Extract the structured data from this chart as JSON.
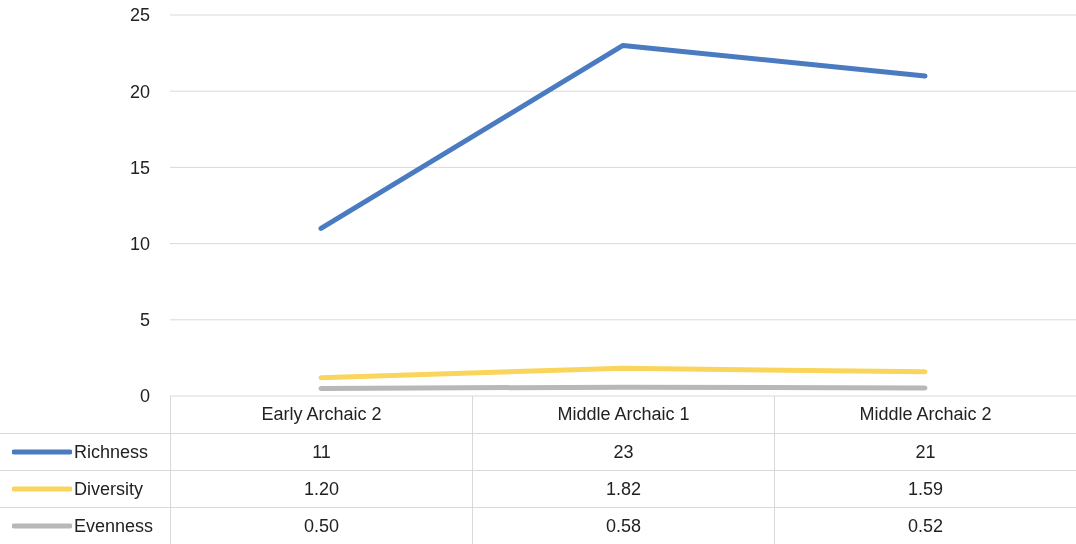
{
  "chart_data": {
    "type": "line",
    "categories": [
      "Early Archaic 2",
      "Middle Archaic 1",
      "Middle Archaic 2"
    ],
    "series": [
      {
        "name": "Richness",
        "color": "#4a7bc0",
        "values": [
          11,
          23,
          21
        ],
        "value_labels": [
          "11",
          "23",
          "21"
        ]
      },
      {
        "name": "Diversity",
        "color": "#fad55c",
        "values": [
          1.2,
          1.82,
          1.59
        ],
        "value_labels": [
          "1.20",
          "1.82",
          "1.59"
        ]
      },
      {
        "name": "Evenness",
        "color": "#b8b8b8",
        "values": [
          0.5,
          0.58,
          0.52
        ],
        "value_labels": [
          "0.50",
          "0.58",
          "0.52"
        ]
      }
    ],
    "ylim": [
      0,
      25
    ],
    "yticks": [
      0,
      5,
      10,
      15,
      20,
      25
    ],
    "grid": "y",
    "legend": "bottom",
    "marker": "none",
    "line_style": "solid"
  }
}
